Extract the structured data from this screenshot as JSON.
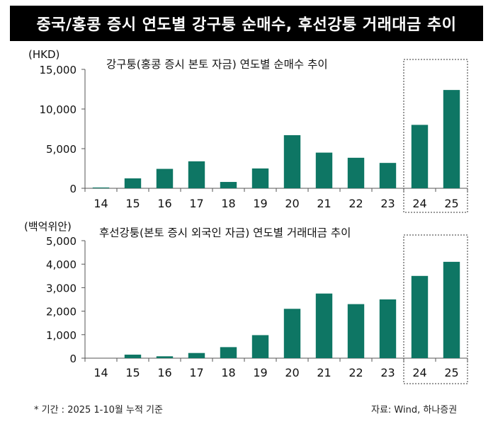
{
  "header": {
    "title": "중국/홍콩 증시 연도별 강구퉁 순매수, 후선강퉁 거래대금 추이"
  },
  "footnote": {
    "period": "* 기간 : 2025 1-10월 누적 기준",
    "source": "자료: Wind, 하나증권"
  },
  "colors": {
    "bar": "#0e7664",
    "axis": "#555555",
    "text": "#111111"
  },
  "chart_data": [
    {
      "type": "bar",
      "title": "강구퉁(홍콩 증시 본토 자금) 연도별 순매수 추이",
      "ylabel": "(HKD)",
      "categories": [
        "14",
        "15",
        "16",
        "17",
        "18",
        "19",
        "20",
        "21",
        "22",
        "23",
        "24",
        "25"
      ],
      "values": [
        100,
        1250,
        2450,
        3400,
        800,
        2500,
        6700,
        4500,
        3850,
        3200,
        8000,
        12400
      ],
      "ylim": [
        0,
        15000
      ],
      "yticks": [
        0,
        5000,
        10000,
        15000
      ],
      "ytick_labels": [
        "0",
        "5,000",
        "10,000",
        "15,000"
      ],
      "highlight": [
        "24",
        "25"
      ]
    },
    {
      "type": "bar",
      "title": "후선강퉁(본토 증시 외국인 자금) 연도별 거래대금 추이",
      "ylabel": "(백억위안)",
      "categories": [
        "14",
        "15",
        "16",
        "17",
        "18",
        "19",
        "20",
        "21",
        "22",
        "23",
        "24",
        "25"
      ],
      "values": [
        0,
        150,
        80,
        220,
        470,
        980,
        2100,
        2750,
        2300,
        2500,
        3500,
        4100
      ],
      "ylim": [
        0,
        5000
      ],
      "yticks": [
        0,
        1000,
        2000,
        3000,
        4000,
        5000
      ],
      "ytick_labels": [
        "0",
        "1,000",
        "2,000",
        "3,000",
        "4,000",
        "5,000"
      ],
      "highlight": [
        "24",
        "25"
      ]
    }
  ]
}
